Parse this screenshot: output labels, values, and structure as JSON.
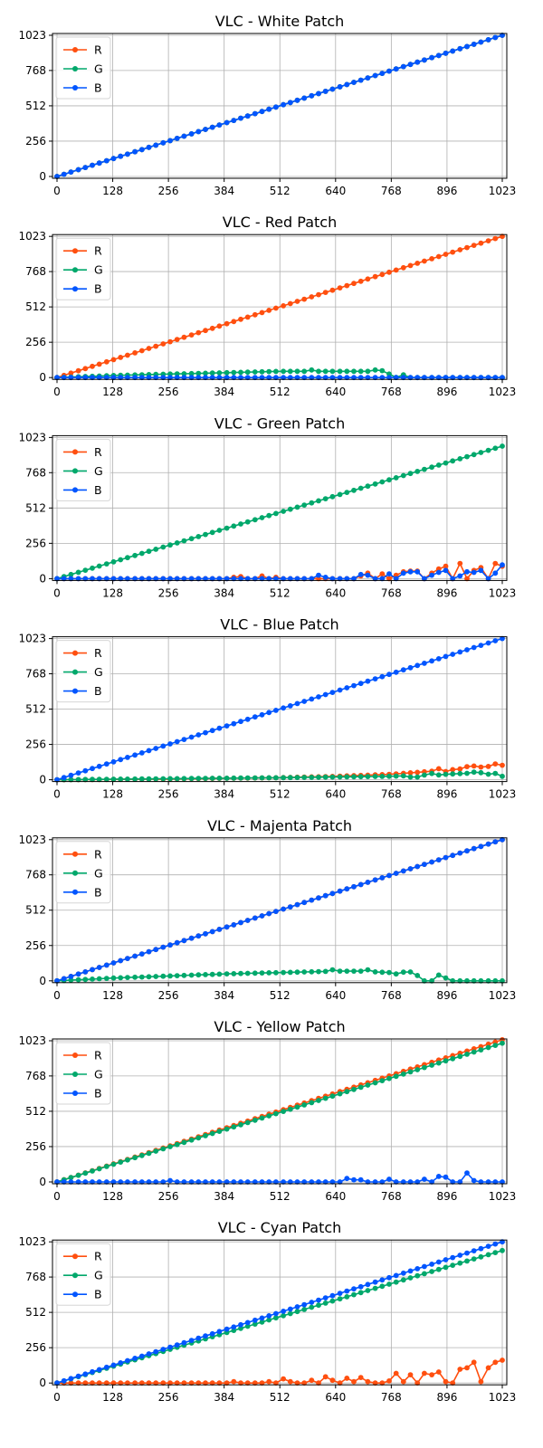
{
  "colors": {
    "R": "#ff4f0f",
    "G": "#00a86b",
    "B": "#0055ff"
  },
  "chart_data": [
    {
      "type": "line",
      "title": "VLC - White Patch",
      "xlabel": "",
      "ylabel": "",
      "xlim": [
        0,
        1023
      ],
      "ylim": [
        0,
        1023
      ],
      "xticks": [
        0,
        128,
        256,
        384,
        512,
        640,
        768,
        896,
        1023
      ],
      "yticks": [
        0,
        256,
        512,
        768,
        1023
      ],
      "legend": "top-left",
      "grid": true,
      "series": [
        {
          "name": "R",
          "color": "R",
          "profile": [
            [
              0,
              0
            ],
            [
              1023,
              1023
            ]
          ],
          "noise": []
        },
        {
          "name": "G",
          "color": "G",
          "profile": [
            [
              0,
              0
            ],
            [
              1023,
              1023
            ]
          ],
          "noise": []
        },
        {
          "name": "B",
          "color": "B",
          "profile": [
            [
              0,
              0
            ],
            [
              1023,
              1023
            ]
          ],
          "noise": []
        }
      ]
    },
    {
      "type": "line",
      "title": "VLC - Red Patch",
      "xlabel": "",
      "ylabel": "",
      "xlim": [
        0,
        1023
      ],
      "ylim": [
        0,
        1023
      ],
      "xticks": [
        0,
        128,
        256,
        384,
        512,
        640,
        768,
        896,
        1023
      ],
      "yticks": [
        0,
        256,
        512,
        768,
        1023
      ],
      "legend": "top-left",
      "grid": true,
      "series": [
        {
          "name": "R",
          "color": "R",
          "profile": [
            [
              0,
              0
            ],
            [
              1023,
              1023
            ]
          ],
          "noise": []
        },
        {
          "name": "G",
          "color": "G",
          "profile": [
            [
              0,
              0
            ],
            [
              128,
              15
            ],
            [
              256,
              25
            ],
            [
              384,
              35
            ],
            [
              512,
              45
            ],
            [
              640,
              45
            ],
            [
              700,
              45
            ],
            [
              730,
              45
            ],
            [
              760,
              30
            ],
            [
              780,
              0
            ],
            [
              1023,
              0
            ]
          ],
          "noise": [
            [
              590,
              55
            ],
            [
              690,
              45
            ],
            [
              730,
              55
            ],
            [
              750,
              50
            ],
            [
              800,
              20
            ]
          ]
        },
        {
          "name": "B",
          "color": "B",
          "profile": [
            [
              0,
              0
            ],
            [
              1023,
              0
            ]
          ],
          "noise": []
        }
      ]
    },
    {
      "type": "line",
      "title": "VLC - Green Patch",
      "xlabel": "",
      "ylabel": "",
      "xlim": [
        0,
        1023
      ],
      "ylim": [
        0,
        1023
      ],
      "xticks": [
        0,
        128,
        256,
        384,
        512,
        640,
        768,
        896,
        1023
      ],
      "yticks": [
        0,
        256,
        512,
        768,
        1023
      ],
      "legend": "top-left",
      "grid": true,
      "series": [
        {
          "name": "R",
          "color": "R",
          "profile": [
            [
              0,
              0
            ],
            [
              1023,
              0
            ]
          ],
          "noise": [
            [
              400,
              10
            ],
            [
              420,
              15
            ],
            [
              470,
              20
            ],
            [
              500,
              10
            ],
            [
              700,
              20
            ],
            [
              720,
              40
            ],
            [
              740,
              35
            ],
            [
              780,
              25
            ],
            [
              800,
              50
            ],
            [
              820,
              55
            ],
            [
              860,
              40
            ],
            [
              880,
              70
            ],
            [
              900,
              90
            ],
            [
              920,
              110
            ],
            [
              960,
              60
            ],
            [
              980,
              80
            ],
            [
              1000,
              130
            ],
            [
              1010,
              110
            ],
            [
              1023,
              90
            ]
          ]
        },
        {
          "name": "G",
          "color": "G",
          "profile": [
            [
              0,
              0
            ],
            [
              1023,
              960
            ]
          ],
          "noise": []
        },
        {
          "name": "B",
          "color": "B",
          "profile": [
            [
              0,
              0
            ],
            [
              1023,
              0
            ]
          ],
          "noise": [
            [
              600,
              25
            ],
            [
              620,
              10
            ],
            [
              700,
              30
            ],
            [
              720,
              25
            ],
            [
              760,
              35
            ],
            [
              800,
              40
            ],
            [
              820,
              50
            ],
            [
              860,
              25
            ],
            [
              880,
              45
            ],
            [
              900,
              60
            ],
            [
              920,
              20
            ],
            [
              940,
              50
            ],
            [
              960,
              45
            ],
            [
              980,
              60
            ],
            [
              1000,
              40
            ],
            [
              1023,
              100
            ]
          ]
        }
      ]
    },
    {
      "type": "line",
      "title": "VLC - Blue Patch",
      "xlabel": "",
      "ylabel": "",
      "xlim": [
        0,
        1023
      ],
      "ylim": [
        0,
        1023
      ],
      "xticks": [
        0,
        128,
        256,
        384,
        512,
        640,
        768,
        896,
        1023
      ],
      "yticks": [
        0,
        256,
        512,
        768,
        1023
      ],
      "legend": "top-left",
      "grid": true,
      "series": [
        {
          "name": "R",
          "color": "R",
          "profile": [
            [
              0,
              0
            ],
            [
              256,
              5
            ],
            [
              512,
              15
            ],
            [
              640,
              25
            ],
            [
              768,
              40
            ],
            [
              896,
              70
            ],
            [
              1023,
              105
            ]
          ],
          "noise": [
            [
              880,
              80
            ],
            [
              900,
              60
            ],
            [
              940,
              95
            ],
            [
              960,
              100
            ],
            [
              1000,
              120
            ],
            [
              1010,
              115
            ]
          ]
        },
        {
          "name": "G",
          "color": "G",
          "profile": [
            [
              0,
              0
            ],
            [
              512,
              15
            ],
            [
              768,
              25
            ],
            [
              896,
              40
            ],
            [
              1000,
              55
            ],
            [
              1023,
              25
            ]
          ],
          "noise": [
            [
              820,
              20
            ],
            [
              860,
              45
            ],
            [
              880,
              35
            ],
            [
              960,
              55
            ],
            [
              990,
              40
            ]
          ]
        },
        {
          "name": "B",
          "color": "B",
          "profile": [
            [
              0,
              0
            ],
            [
              1023,
              1023
            ]
          ],
          "noise": []
        }
      ]
    },
    {
      "type": "line",
      "title": "VLC - Majenta Patch",
      "xlabel": "",
      "ylabel": "",
      "xlim": [
        0,
        1023
      ],
      "ylim": [
        0,
        1023
      ],
      "xticks": [
        0,
        128,
        256,
        384,
        512,
        640,
        768,
        896,
        1023
      ],
      "yticks": [
        0,
        256,
        512,
        768,
        1023
      ],
      "legend": "top-left",
      "grid": true,
      "series": [
        {
          "name": "R",
          "color": "R",
          "profile": [
            [
              0,
              0
            ],
            [
              1023,
              1023
            ]
          ],
          "noise": []
        },
        {
          "name": "G",
          "color": "G",
          "profile": [
            [
              0,
              0
            ],
            [
              128,
              20
            ],
            [
              256,
              35
            ],
            [
              384,
              50
            ],
            [
              512,
              60
            ],
            [
              640,
              70
            ],
            [
              700,
              70
            ],
            [
              760,
              60
            ],
            [
              820,
              65
            ],
            [
              840,
              0
            ],
            [
              870,
              0
            ],
            [
              880,
              60
            ],
            [
              900,
              0
            ],
            [
              1023,
              0
            ]
          ],
          "noise": [
            [
              640,
              80
            ],
            [
              720,
              80
            ],
            [
              780,
              50
            ]
          ]
        },
        {
          "name": "B",
          "color": "B",
          "profile": [
            [
              0,
              0
            ],
            [
              1023,
              1023
            ]
          ],
          "noise": []
        }
      ]
    },
    {
      "type": "line",
      "title": "VLC - Yellow Patch",
      "xlabel": "",
      "ylabel": "",
      "xlim": [
        0,
        1023
      ],
      "ylim": [
        0,
        1023
      ],
      "xticks": [
        0,
        128,
        256,
        384,
        512,
        640,
        768,
        896,
        1023
      ],
      "yticks": [
        0,
        256,
        512,
        768,
        1023
      ],
      "legend": "top-left",
      "grid": true,
      "series": [
        {
          "name": "R",
          "color": "R",
          "profile": [
            [
              0,
              0
            ],
            [
              1023,
              1030
            ]
          ],
          "noise": []
        },
        {
          "name": "G",
          "color": "G",
          "profile": [
            [
              0,
              0
            ],
            [
              1023,
              1005
            ]
          ],
          "noise": []
        },
        {
          "name": "B",
          "color": "B",
          "profile": [
            [
              0,
              0
            ],
            [
              1023,
              0
            ]
          ],
          "noise": [
            [
              256,
              10
            ],
            [
              660,
              25
            ],
            [
              690,
              15
            ],
            [
              760,
              20
            ],
            [
              840,
              20
            ],
            [
              880,
              40
            ],
            [
              900,
              35
            ],
            [
              940,
              65
            ],
            [
              960,
              10
            ]
          ]
        }
      ]
    },
    {
      "type": "line",
      "title": "VLC - Cyan Patch",
      "xlabel": "",
      "ylabel": "",
      "xlim": [
        0,
        1023
      ],
      "ylim": [
        0,
        1023
      ],
      "xticks": [
        0,
        128,
        256,
        384,
        512,
        640,
        768,
        896,
        1023
      ],
      "yticks": [
        0,
        256,
        512,
        768,
        1023
      ],
      "legend": "top-left",
      "grid": true,
      "series": [
        {
          "name": "R",
          "color": "R",
          "profile": [
            [
              0,
              0
            ],
            [
              1023,
              0
            ]
          ],
          "noise": [
            [
              400,
              10
            ],
            [
              480,
              10
            ],
            [
              520,
              30
            ],
            [
              540,
              10
            ],
            [
              580,
              20
            ],
            [
              590,
              50
            ],
            [
              610,
              45
            ],
            [
              640,
              20
            ],
            [
              660,
              35
            ],
            [
              680,
              10
            ],
            [
              700,
              40
            ],
            [
              720,
              10
            ],
            [
              760,
              15
            ],
            [
              780,
              70
            ],
            [
              800,
              10
            ],
            [
              810,
              60
            ],
            [
              840,
              70
            ],
            [
              860,
              60
            ],
            [
              880,
              80
            ],
            [
              900,
              10
            ],
            [
              920,
              100
            ],
            [
              940,
              110
            ],
            [
              960,
              150
            ],
            [
              980,
              10
            ],
            [
              990,
              110
            ],
            [
              1000,
              70
            ],
            [
              1010,
              150
            ],
            [
              1023,
              165
            ]
          ]
        },
        {
          "name": "G",
          "color": "G",
          "profile": [
            [
              0,
              0
            ],
            [
              1023,
              960
            ]
          ],
          "noise": []
        },
        {
          "name": "B",
          "color": "B",
          "profile": [
            [
              0,
              0
            ],
            [
              1023,
              1023
            ]
          ],
          "noise": []
        }
      ]
    }
  ]
}
